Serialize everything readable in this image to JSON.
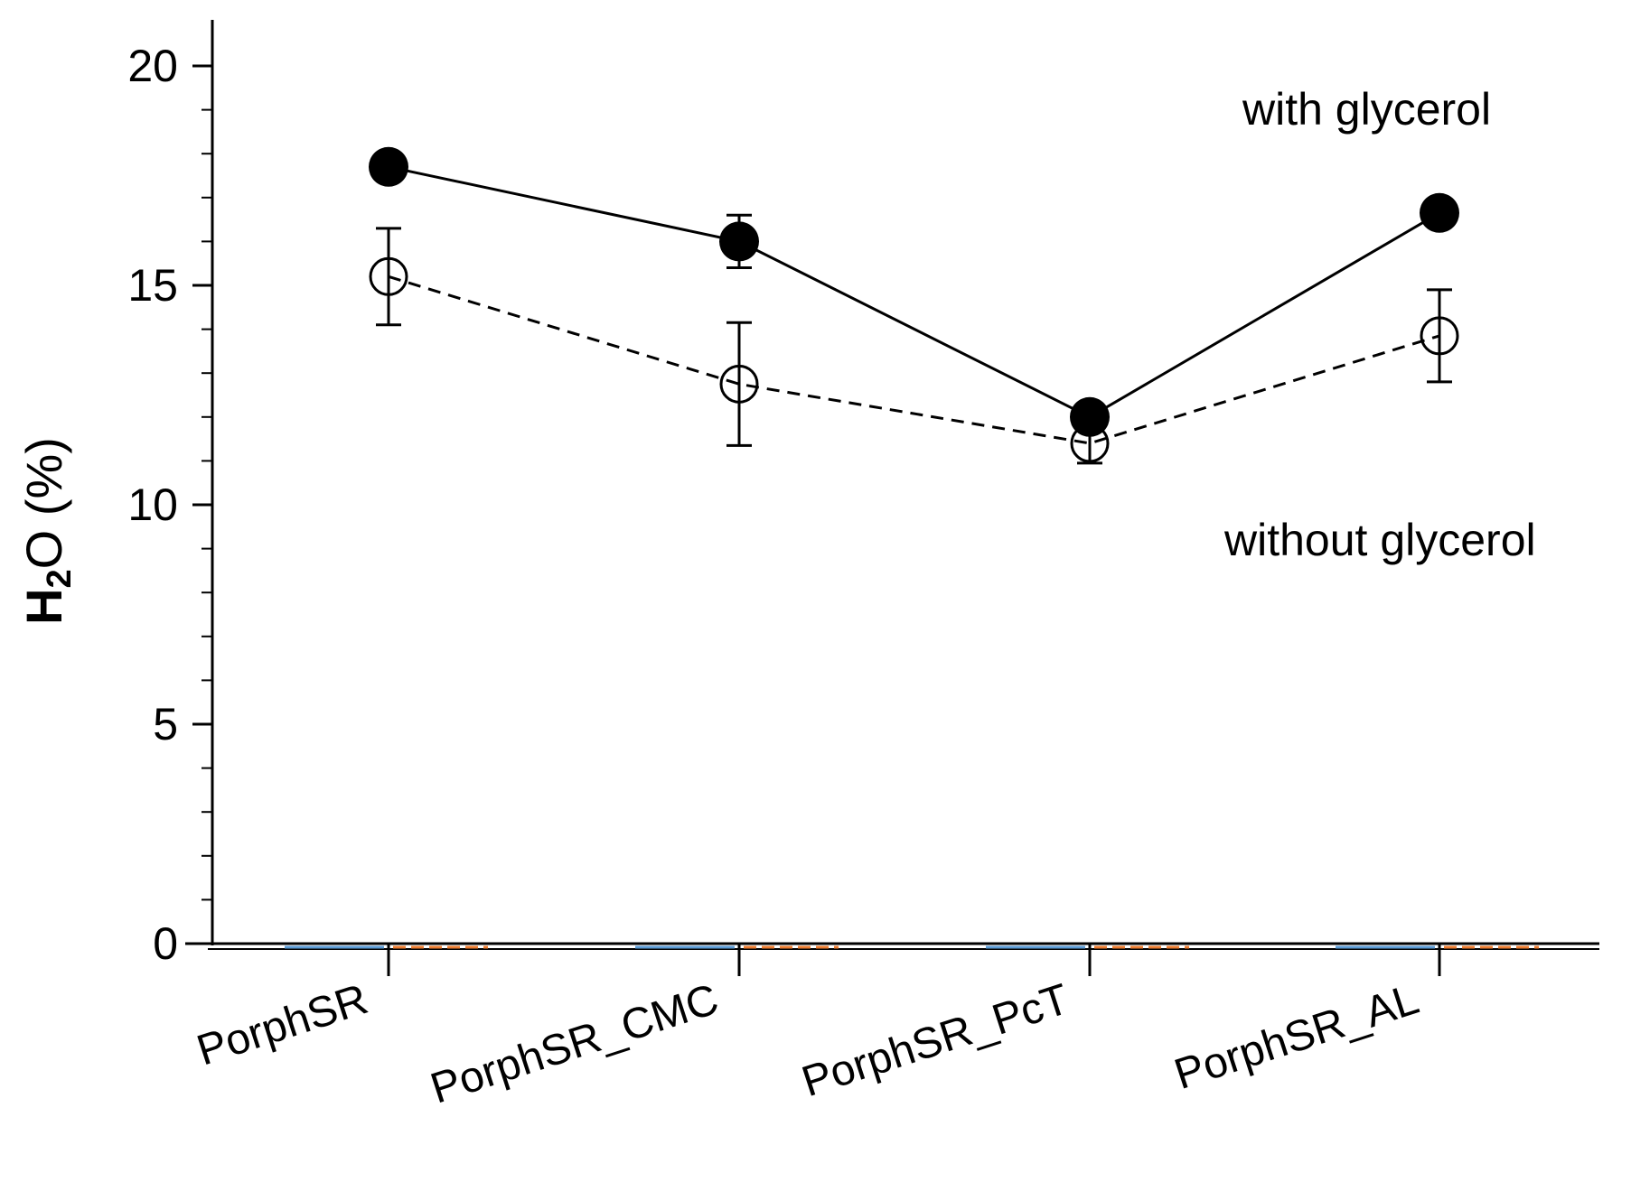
{
  "chart_data": {
    "type": "line",
    "categories": [
      "PorphSR",
      "PorphSR_CMC",
      "PorphSR_PcT",
      "PorphSR_AL"
    ],
    "ylabel": {
      "main": "H",
      "sub": "2",
      "rest": "O (%)"
    },
    "ylim": [
      0,
      20
    ],
    "yticks": [
      0,
      5,
      10,
      15,
      20
    ],
    "y_minor_step": 1,
    "grid": false,
    "series": [
      {
        "name": "with glycerol",
        "values": [
          17.7,
          16.0,
          12.0,
          16.65
        ],
        "errors": [
          0,
          0.6,
          0,
          0
        ],
        "marker": "filled-circle",
        "line": "solid"
      },
      {
        "name": "without glycerol",
        "values": [
          15.2,
          12.75,
          11.4,
          13.85
        ],
        "errors": [
          1.1,
          1.4,
          0.45,
          1.05
        ],
        "marker": "open-circle",
        "line": "dashed"
      }
    ],
    "colors": {
      "axis": "#000000",
      "base_blue": "#5b9bd5",
      "base_orange": "#ed7d31"
    }
  }
}
